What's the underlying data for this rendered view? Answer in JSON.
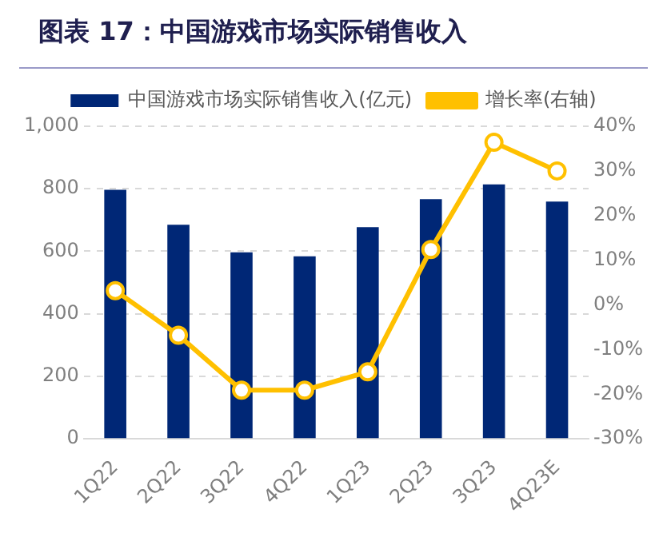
{
  "chart_data": {
    "type": "bar",
    "title": "图表 17：中国游戏市场实际销售收入",
    "categories": [
      "1Q22",
      "2Q22",
      "3Q22",
      "4Q22",
      "1Q23",
      "2Q23",
      "3Q23",
      "4Q23E"
    ],
    "series": [
      {
        "name": "中国游戏市场实际销售收入(亿元)",
        "color": "#002776",
        "values": [
          797,
          685,
          597,
          584,
          677,
          767,
          814,
          759
        ]
      },
      {
        "name": "增长率(右轴)",
        "type": "line",
        "axis": "y2",
        "color": "#ffc000",
        "marker": "circle",
        "values": [
          3.2,
          -6.8,
          -19.1,
          -19.1,
          -15,
          12.4,
          36.4,
          30
        ]
      }
    ],
    "ylim": [
      0,
      1000
    ],
    "yticks": [
      0,
      200,
      400,
      600,
      800,
      {
        "value": 1000,
        "label": "1,000"
      }
    ],
    "y2lim": [
      -30,
      40
    ],
    "y2ticks": [
      {
        "value": -30,
        "label": "-30%"
      },
      {
        "value": -20,
        "label": "-20%"
      },
      {
        "value": -10,
        "label": "-10%"
      },
      {
        "value": 0,
        "label": "0%"
      },
      {
        "value": 10,
        "label": "10%"
      },
      {
        "value": 20,
        "label": "20%"
      },
      {
        "value": 30,
        "label": "30%"
      },
      {
        "value": 40,
        "label": "40%"
      }
    ],
    "grid": "y",
    "legend": "top"
  }
}
